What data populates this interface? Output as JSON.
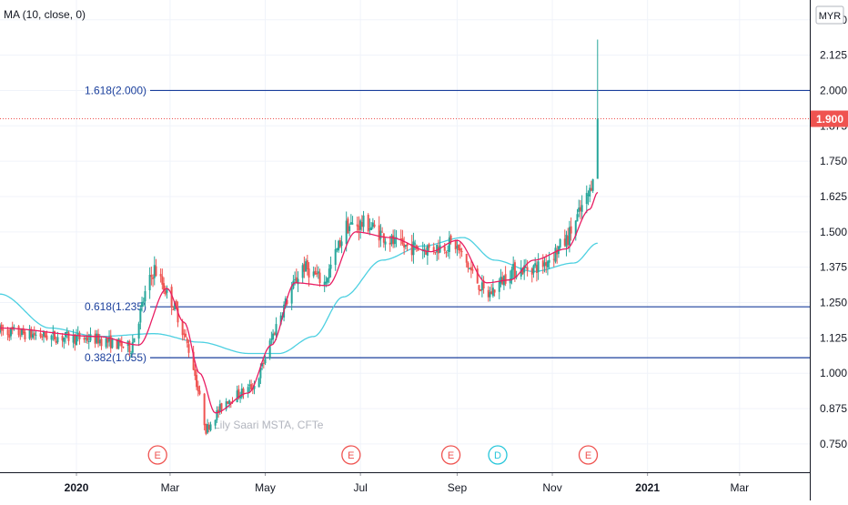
{
  "indicator_label": "MA (10, close, 0)",
  "currency": "MYR",
  "last_price_label": "1.900",
  "watermark": "Lily Saari  MSTA, CFTe",
  "colors": {
    "up": "#26a69a",
    "down": "#ef5350",
    "ma_fast": "#e91e63",
    "ma_slow": "#4dd0e1",
    "fib_line": "#1a3f9c",
    "price_line": "#ef5350",
    "axis_text": "#131722",
    "fib_text": "#1a3f9c"
  },
  "fib_levels": [
    {
      "label": "1.618(2.000)",
      "price": 2.0
    },
    {
      "label": "0.618(1.235)",
      "price": 1.235
    },
    {
      "label": "0.382(1.055)",
      "price": 1.055
    }
  ],
  "events": [
    {
      "label": "E",
      "date": "2020-02-22",
      "type": "earnings"
    },
    {
      "label": "E",
      "date": "2020-06-25",
      "type": "earnings"
    },
    {
      "label": "E",
      "date": "2020-08-28",
      "type": "earnings"
    },
    {
      "label": "D",
      "date": "2020-09-27",
      "type": "dividend"
    },
    {
      "label": "E",
      "date": "2020-11-24",
      "type": "earnings"
    }
  ],
  "chart_data": {
    "type": "candlestick",
    "title": "",
    "y_axis_unit": "MYR",
    "ylim": [
      0.65,
      2.32
    ],
    "xlim": [
      "2019-11-13",
      "2021-04-15"
    ],
    "y_ticks": [
      "2.250",
      "2.125",
      "2.000",
      "1.875",
      "1.750",
      "1.625",
      "1.500",
      "1.375",
      "1.250",
      "1.125",
      "1.000",
      "0.875",
      "0.750"
    ],
    "x_ticks": [
      {
        "label": "2020",
        "date": "2020-01-01"
      },
      {
        "label": "Mar",
        "date": "2020-03-01"
      },
      {
        "label": "May",
        "date": "2020-05-01"
      },
      {
        "label": "Jul",
        "date": "2020-07-01"
      },
      {
        "label": "Sep",
        "date": "2020-09-01"
      },
      {
        "label": "Nov",
        "date": "2020-11-01"
      },
      {
        "label": "2021",
        "date": "2021-01-01"
      },
      {
        "label": "Mar",
        "date": "2021-03-01"
      }
    ],
    "close_path": [
      [
        "2019-11-13",
        1.15
      ],
      [
        "2019-12-15",
        1.13
      ],
      [
        "2020-01-15",
        1.12
      ],
      [
        "2020-02-05",
        1.09
      ],
      [
        "2020-02-15",
        1.3
      ],
      [
        "2020-02-20",
        1.37
      ],
      [
        "2020-03-05",
        1.22
      ],
      [
        "2020-03-15",
        1.05
      ],
      [
        "2020-03-24",
        0.8
      ],
      [
        "2020-04-05",
        0.9
      ],
      [
        "2020-04-25",
        0.96
      ],
      [
        "2020-05-10",
        1.2
      ],
      [
        "2020-05-25",
        1.38
      ],
      [
        "2020-06-08",
        1.32
      ],
      [
        "2020-06-22",
        1.52
      ],
      [
        "2020-07-05",
        1.53
      ],
      [
        "2020-07-25",
        1.45
      ],
      [
        "2020-08-15",
        1.44
      ],
      [
        "2020-08-30",
        1.46
      ],
      [
        "2020-09-20",
        1.27
      ],
      [
        "2020-10-05",
        1.36
      ],
      [
        "2020-10-25",
        1.38
      ],
      [
        "2020-11-10",
        1.47
      ],
      [
        "2020-11-25",
        1.64
      ],
      [
        "2020-11-28",
        1.75
      ],
      [
        "2020-11-30",
        1.9
      ]
    ],
    "series": [
      {
        "name": "MA (10, close, 0)",
        "color": "#e91e63",
        "points": [
          [
            "2019-11-13",
            1.16
          ],
          [
            "2020-01-15",
            1.13
          ],
          [
            "2020-02-10",
            1.1
          ],
          [
            "2020-02-28",
            1.3
          ],
          [
            "2020-03-10",
            1.18
          ],
          [
            "2020-03-20",
            1.0
          ],
          [
            "2020-03-30",
            0.86
          ],
          [
            "2020-04-20",
            0.93
          ],
          [
            "2020-05-05",
            1.1
          ],
          [
            "2020-05-20",
            1.32
          ],
          [
            "2020-06-10",
            1.31
          ],
          [
            "2020-06-28",
            1.5
          ],
          [
            "2020-07-20",
            1.48
          ],
          [
            "2020-08-15",
            1.43
          ],
          [
            "2020-09-01",
            1.47
          ],
          [
            "2020-09-20",
            1.32
          ],
          [
            "2020-10-05",
            1.33
          ],
          [
            "2020-10-20",
            1.4
          ],
          [
            "2020-11-10",
            1.44
          ],
          [
            "2020-11-25",
            1.58
          ],
          [
            "2020-11-30",
            1.64
          ]
        ]
      },
      {
        "name": "",
        "color": "#4dd0e1",
        "points": [
          [
            "2019-11-13",
            1.28
          ],
          [
            "2019-12-15",
            1.16
          ],
          [
            "2020-01-15",
            1.13
          ],
          [
            "2020-02-20",
            1.14
          ],
          [
            "2020-03-20",
            1.11
          ],
          [
            "2020-04-20",
            1.07
          ],
          [
            "2020-05-10",
            1.07
          ],
          [
            "2020-06-01",
            1.13
          ],
          [
            "2020-06-20",
            1.27
          ],
          [
            "2020-07-15",
            1.4
          ],
          [
            "2020-08-10",
            1.45
          ],
          [
            "2020-09-05",
            1.48
          ],
          [
            "2020-09-25",
            1.4
          ],
          [
            "2020-10-20",
            1.36
          ],
          [
            "2020-11-15",
            1.39
          ],
          [
            "2020-11-30",
            1.46
          ]
        ]
      }
    ]
  }
}
